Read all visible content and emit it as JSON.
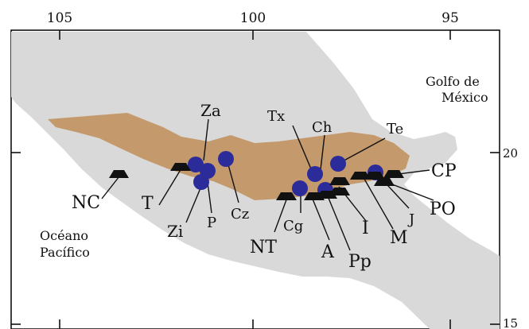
{
  "longitude_ticks": [
    "105",
    "100",
    "95"
  ],
  "latitude_ticks": [
    "20",
    "15"
  ],
  "water_labels": {
    "gulf_line1": "Golfo de",
    "gulf_line2": "México",
    "pacific_line1": "Océano",
    "pacific_line2": "Pacífico"
  },
  "site_labels": {
    "nc": "NC",
    "t": "T",
    "zi": "Zi",
    "za": "Za",
    "p": "P",
    "cz": "Cz",
    "nt": "NT",
    "cg": "Cg",
    "tx": "Tx",
    "ch": "Ch",
    "a": "A",
    "pp": "Pp",
    "i": "I",
    "te": "Te",
    "m": "M",
    "j": "J",
    "cp": "CP",
    "po": "PO"
  },
  "colors": {
    "land": "#d9d9d9",
    "volcanic_belt": "#c49a6c",
    "circle_marker": "#2b2b9a",
    "triangle_marker": "#111111"
  }
}
